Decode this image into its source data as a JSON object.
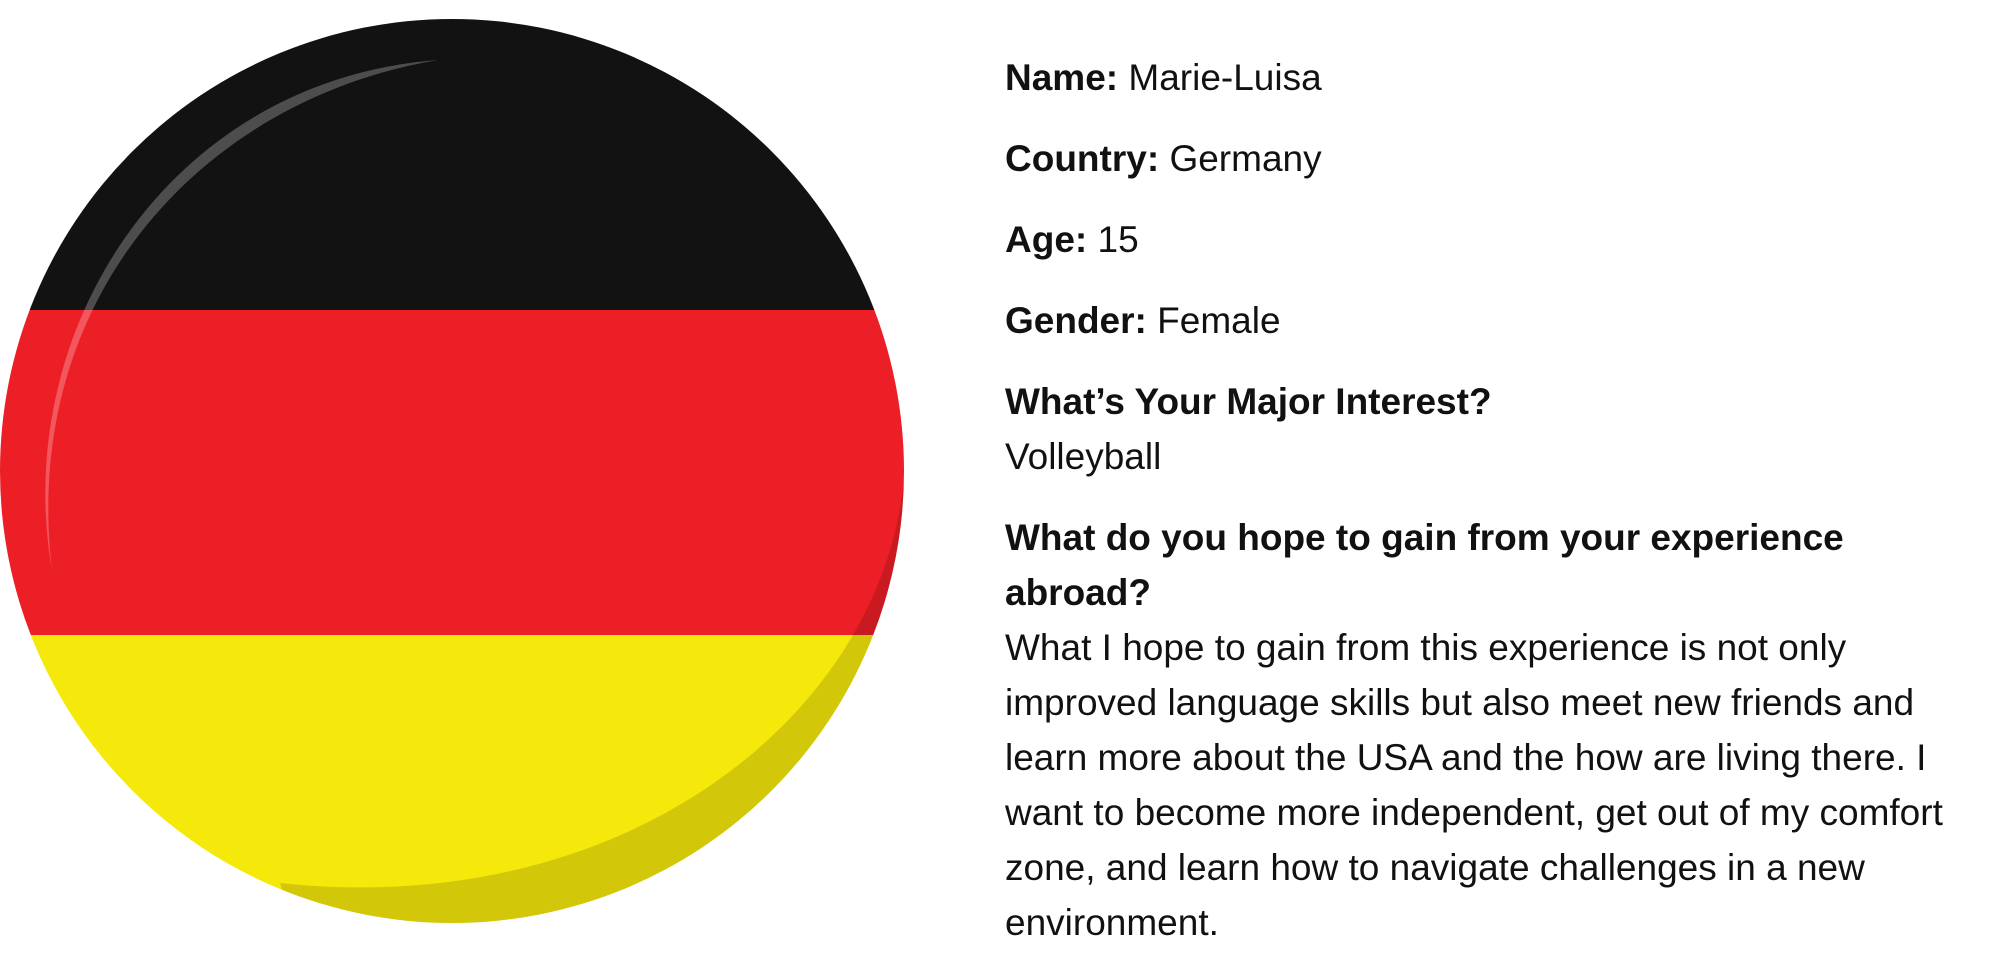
{
  "profile": {
    "fields": [
      {
        "label": "Name:",
        "value": "Marie-Luisa"
      },
      {
        "label": "Country:",
        "value": "Germany"
      },
      {
        "label": "Age:",
        "value": "15"
      },
      {
        "label": "Gender:",
        "value": "Female"
      }
    ],
    "questions": [
      {
        "question": "What’s Your Major Interest?",
        "answer": "Volleyball"
      },
      {
        "question": "What do you hope to gain from your experience abroad?",
        "answer": "What I hope to gain from this experience is not only improved language skills but also meet new friends and learn more about the USA and the how are living there. I want to become more independent, get out of my comfort zone, and learn how to navigate challenges in a new environment."
      }
    ]
  }
}
